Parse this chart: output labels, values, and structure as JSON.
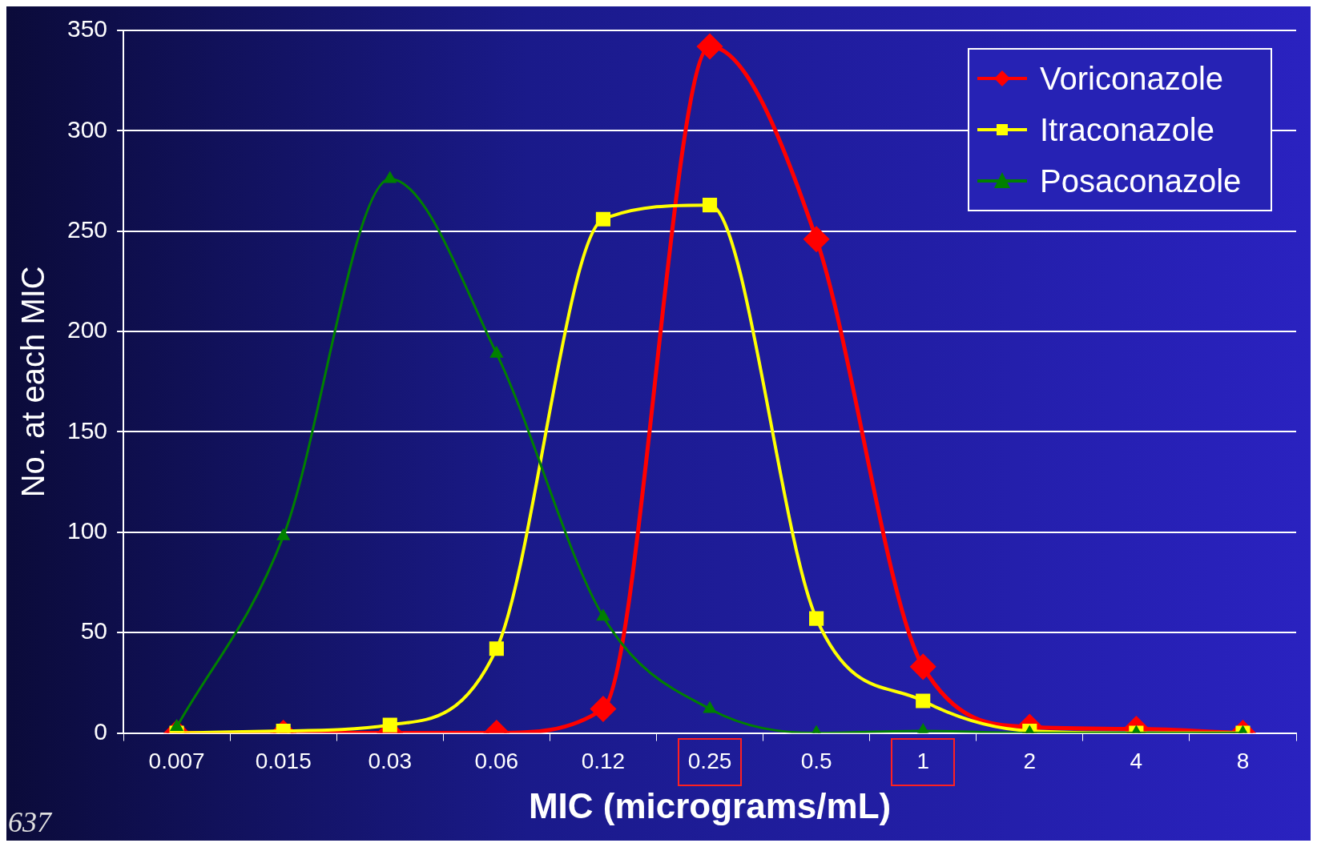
{
  "chart_data": {
    "type": "line",
    "xlabel": "MIC (micrograms/mL)",
    "ylabel": "No. at each MIC",
    "categories": [
      "0.007",
      "0.015",
      "0.03",
      "0.06",
      "0.12",
      "0.25",
      "0.5",
      "1",
      "2",
      "4",
      "8"
    ],
    "series": [
      {
        "name": "Voriconazole",
        "color": "#ff0000",
        "marker": "diamond",
        "values": [
          0,
          0,
          0,
          0,
          12,
          342,
          246,
          33,
          3,
          2,
          0
        ]
      },
      {
        "name": "Itraconazole",
        "color": "#ffff00",
        "marker": "square",
        "values": [
          0,
          1,
          4,
          42,
          256,
          263,
          57,
          16,
          1,
          0,
          0
        ]
      },
      {
        "name": "Posaconazole",
        "color": "#008000",
        "marker": "triangle",
        "values": [
          3,
          98,
          276,
          189,
          58,
          12,
          0,
          1,
          0,
          0,
          0
        ]
      }
    ],
    "ylim": [
      0,
      350
    ],
    "yticks": [
      0,
      50,
      100,
      150,
      200,
      250,
      300,
      350
    ],
    "grid": "y",
    "legend": "top right",
    "annotations": [
      "637"
    ]
  }
}
